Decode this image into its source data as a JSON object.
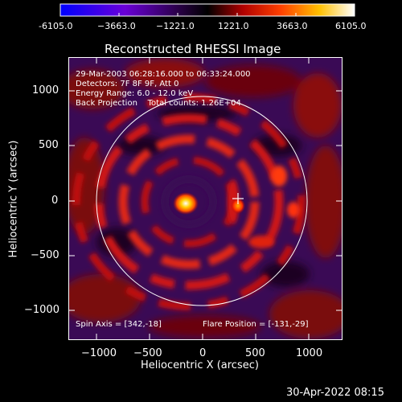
{
  "colorbar": {
    "ticks": [
      "-6105.0",
      "−3663.0",
      "−1221.0",
      "1221.0",
      "3663.0",
      "6105.0"
    ],
    "colors": [
      "#0000ff",
      "#6b00c8",
      "#2a0040",
      "#000000",
      "#b00000",
      "#ff5000",
      "#ffd000",
      "#ffffff"
    ]
  },
  "plot": {
    "title": "Reconstructed RHESSI Image",
    "xlabel": "Heliocentric X (arcsec)",
    "ylabel": "Heliocentric Y (arcsec)",
    "xticks": [
      "−1000",
      "−500",
      "0",
      "500",
      "1000"
    ],
    "yticks": [
      "1000",
      "500",
      "0",
      "−500",
      "−1000"
    ],
    "info_lines": [
      "29-Mar-2003 06:28:16.000 to 06:33:24.000",
      "Detectors: 7F 8F 9F, Att 0",
      "Energy Range: 6.0 - 12.0 keV",
      "Back Projection    Total counts: 1.26E+04"
    ],
    "spin_axis": "Spin Axis = [342,-18]",
    "flare_position": "Flare Position = [-131,-29]"
  },
  "timestamp": "30-Apr-2022 08:15"
}
